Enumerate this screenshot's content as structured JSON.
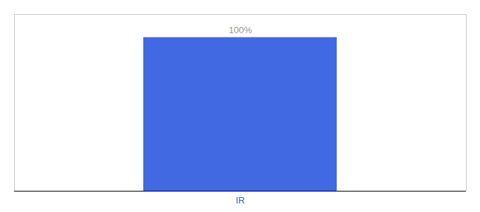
{
  "chart_data": {
    "type": "bar",
    "categories": [
      "IR"
    ],
    "values": [
      100
    ],
    "value_labels": [
      "100%"
    ],
    "data_labels": true,
    "color": "#4169e1",
    "ylim": [
      0,
      115
    ],
    "tick_labels": "x"
  }
}
